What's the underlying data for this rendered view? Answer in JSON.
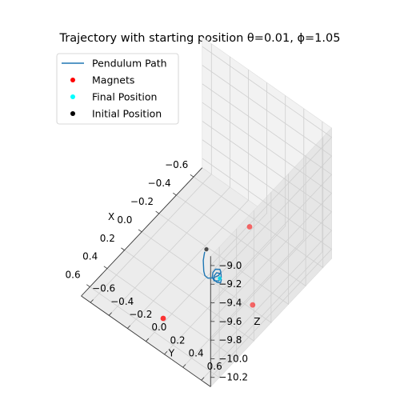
{
  "chart_data": {
    "type": "scatter",
    "title": "Trajectory with starting position θ=0.01, ϕ=1.05",
    "projection": "3d",
    "xlabel": "X",
    "ylabel": "Y",
    "zlabel": "Z",
    "xlim": [
      -0.7,
      0.7
    ],
    "ylim": [
      -0.7,
      0.7
    ],
    "zlim": [
      -10.3,
      -8.9
    ],
    "xticks": [
      -0.6,
      -0.4,
      -0.2,
      0.0,
      0.2,
      0.4,
      0.6
    ],
    "xtick_labels": [
      "−0.6",
      "−0.4",
      "−0.2",
      "0.0",
      "0.2",
      "0.4",
      "0.6"
    ],
    "yticks": [
      -0.6,
      -0.4,
      -0.2,
      0.0,
      0.2,
      0.4,
      0.6
    ],
    "ytick_labels": [
      "−0.6",
      "−0.4",
      "−0.2",
      "0.0",
      "0.2",
      "0.4",
      "0.6"
    ],
    "zticks": [
      -10.2,
      -10.0,
      -9.8,
      -9.6,
      -9.4,
      -9.2,
      -9.0
    ],
    "ztick_labels": [
      "−10.2",
      "−10.0",
      "−9.8",
      "−9.6",
      "−9.4",
      "−9.2",
      "−9.0"
    ],
    "grid": true,
    "legend": {
      "position": "top-left"
    },
    "series": [
      {
        "name": "Pendulum Path",
        "kind": "line",
        "color": "#1f77b4",
        "x": [
          0.03,
          0.06,
          0.1,
          0.14,
          0.18,
          0.21,
          0.22,
          0.2,
          0.16,
          0.12,
          0.1,
          0.12,
          0.16,
          0.2,
          0.22,
          0.2,
          0.16,
          0.13,
          0.15,
          0.19,
          0.22,
          0.23,
          0.21,
          0.18,
          0.17,
          0.19
        ],
        "y": [
          0.01,
          0.03,
          0.06,
          0.1,
          0.14,
          0.18,
          0.22,
          0.26,
          0.28,
          0.27,
          0.24,
          0.21,
          0.22,
          0.25,
          0.29,
          0.32,
          0.31,
          0.28,
          0.25,
          0.26,
          0.29,
          0.33,
          0.35,
          0.33,
          0.3,
          0.31
        ],
        "z": [
          -9.99,
          -9.99,
          -9.98,
          -9.97,
          -9.96,
          -9.95,
          -9.94,
          -9.93,
          -9.93,
          -9.94,
          -9.95,
          -9.95,
          -9.94,
          -9.93,
          -9.92,
          -9.92,
          -9.93,
          -9.94,
          -9.93,
          -9.92,
          -9.91,
          -9.9,
          -9.91,
          -9.92,
          -9.92,
          -9.92
        ]
      },
      {
        "name": "Magnets",
        "kind": "scatter",
        "color": "#ff0000",
        "x": [
          0.5,
          0.0,
          -0.5
        ],
        "y": [
          0.0,
          0.5,
          0.0
        ],
        "z": [
          -10.25,
          -10.25,
          -10.25
        ]
      },
      {
        "name": "Final Position",
        "kind": "scatter",
        "color": "#00ffff",
        "x": [
          0.18
        ],
        "y": [
          0.31
        ],
        "z": [
          -9.92
        ]
      },
      {
        "name": "Initial Position",
        "kind": "scatter",
        "color": "#000000",
        "x": [
          0.0
        ],
        "y": [
          0.0
        ],
        "z": [
          -10.0
        ]
      }
    ]
  }
}
